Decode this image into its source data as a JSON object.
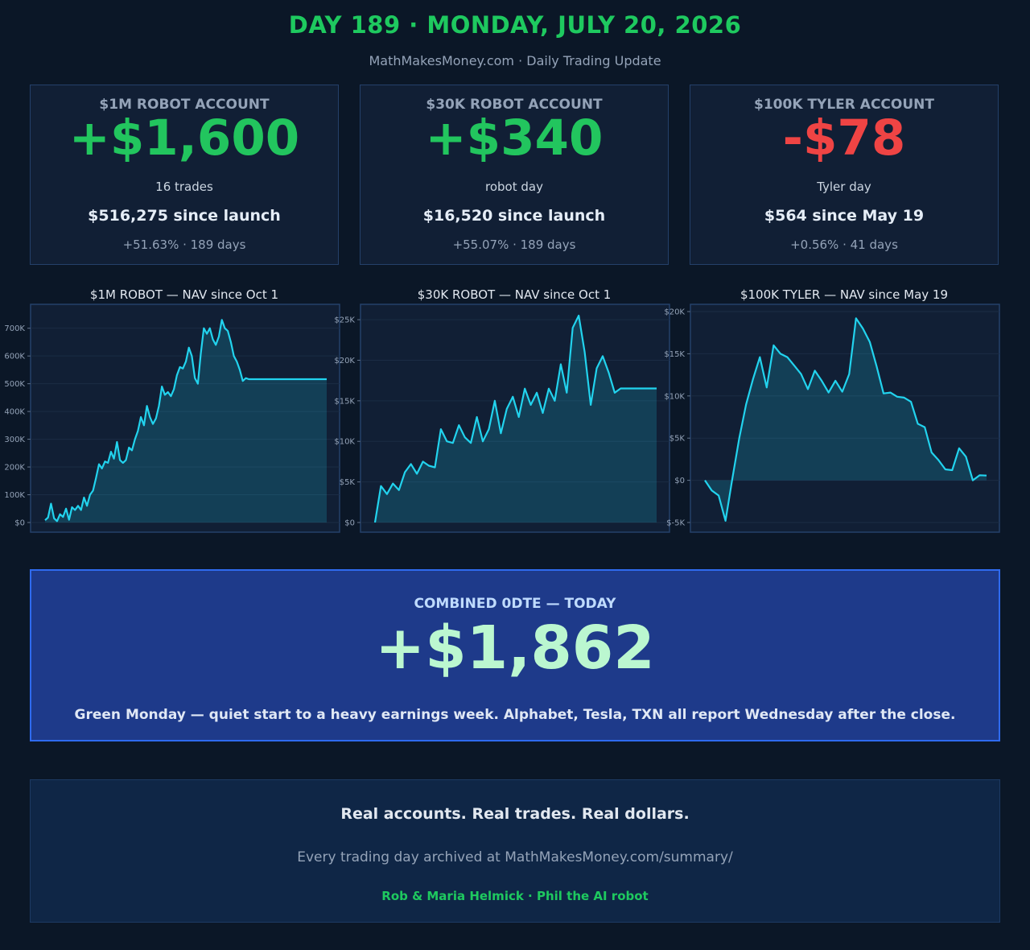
{
  "header": {
    "title": "DAY 189 · MONDAY, JULY 20, 2026",
    "subtitle": "MathMakesMoney.com  ·  Daily Trading Update"
  },
  "cards": [
    {
      "account": "$1M ROBOT ACCOUNT",
      "pnl": "+$1,600",
      "note": "16 trades",
      "since": "$516,275 since launch",
      "pct": "+51.63% · 189 days",
      "color": "#22c55e"
    },
    {
      "account": "$30K ROBOT ACCOUNT",
      "pnl": "+$340",
      "note": "robot day",
      "since": "$16,520 since launch",
      "pct": "+55.07% · 189 days",
      "color": "#22c55e"
    },
    {
      "account": "$100K TYLER ACCOUNT",
      "pnl": "-$78",
      "note": "Tyler day",
      "since": "$564 since May 19",
      "pct": "+0.56% · 41 days",
      "color": "#ef4444"
    }
  ],
  "chart_data": [
    {
      "type": "area",
      "title": "$1M ROBOT — NAV since Oct 1",
      "ylim": [
        0,
        760000
      ],
      "yticks": [
        0,
        100000,
        200000,
        300000,
        400000,
        500000,
        600000,
        700000
      ],
      "ytick_labels": [
        "$0",
        "100K",
        "200K",
        "300K",
        "400K",
        "500K",
        "600K",
        "700K"
      ],
      "color": "#22d3ee",
      "x": [
        0,
        2,
        4,
        6,
        8,
        10,
        12,
        14,
        16,
        18,
        20,
        22,
        24,
        26,
        28,
        30,
        32,
        34,
        36,
        38,
        40,
        42,
        44,
        46,
        48,
        50,
        52,
        54,
        56,
        58,
        60,
        62,
        64,
        66,
        68,
        70,
        72,
        74,
        76,
        78,
        80,
        82,
        84,
        86,
        88,
        90,
        92,
        94,
        96,
        98,
        100,
        102,
        104,
        106,
        108,
        110,
        112,
        114,
        116,
        118,
        120,
        122,
        124,
        126,
        128,
        130,
        132,
        134,
        136,
        138,
        140,
        142,
        144,
        146,
        148,
        150,
        152,
        154,
        156,
        158,
        160,
        162,
        164,
        166,
        168,
        170,
        172,
        174,
        176,
        178,
        180,
        182,
        184,
        186,
        188
      ],
      "values": [
        8000,
        18000,
        68000,
        15000,
        5000,
        30000,
        20000,
        50000,
        10000,
        55000,
        45000,
        60000,
        45000,
        90000,
        60000,
        100000,
        115000,
        160000,
        210000,
        195000,
        220000,
        215000,
        255000,
        230000,
        290000,
        225000,
        215000,
        225000,
        270000,
        260000,
        300000,
        330000,
        380000,
        350000,
        420000,
        380000,
        355000,
        375000,
        420000,
        490000,
        460000,
        470000,
        455000,
        480000,
        530000,
        560000,
        555000,
        580000,
        630000,
        600000,
        520000,
        500000,
        610000,
        700000,
        680000,
        700000,
        660000,
        640000,
        670000,
        730000,
        700000,
        690000,
        650000,
        600000,
        580000,
        550000,
        510000,
        520000,
        516275,
        516275,
        516275,
        516275,
        516275,
        516275,
        516275,
        516275,
        516275,
        516275,
        516275,
        516275,
        516275,
        516275,
        516275,
        516275,
        516275,
        516275,
        516275,
        516275,
        516275,
        516275,
        516275,
        516275,
        516275,
        516275,
        516275
      ]
    },
    {
      "type": "area",
      "title": "$30K ROBOT — NAV since Oct 1",
      "ylim": [
        0,
        26000
      ],
      "yticks": [
        0,
        5000,
        10000,
        15000,
        20000,
        25000
      ],
      "ytick_labels": [
        "$0",
        "$5K",
        "$10K",
        "$15K",
        "$20K",
        "$25K"
      ],
      "color": "#22d3ee",
      "x": [
        0,
        4,
        8,
        12,
        16,
        20,
        24,
        28,
        32,
        36,
        40,
        44,
        48,
        52,
        56,
        60,
        64,
        68,
        72,
        76,
        80,
        84,
        88,
        92,
        96,
        100,
        104,
        108,
        112,
        116,
        120,
        124,
        128,
        132,
        136,
        140,
        144,
        148,
        152,
        156,
        160,
        164,
        168,
        172,
        176,
        180,
        184,
        188
      ],
      "values": [
        0,
        4500,
        3500,
        4800,
        4000,
        6200,
        7200,
        6000,
        7500,
        7000,
        6800,
        11500,
        10000,
        9800,
        12000,
        10500,
        9800,
        13000,
        10000,
        11500,
        15000,
        11000,
        14000,
        15500,
        13000,
        16500,
        14500,
        16000,
        13500,
        16500,
        15000,
        19500,
        16000,
        24000,
        25500,
        21000,
        14500,
        19000,
        20500,
        18500,
        16000,
        16520,
        16520,
        16520,
        16520,
        16520,
        16520,
        16520
      ]
    },
    {
      "type": "area",
      "title": "$100K TYLER — NAV since May 19",
      "ylim": [
        -5000,
        20000
      ],
      "yticks": [
        -5000,
        0,
        5000,
        10000,
        15000,
        20000
      ],
      "ytick_labels": [
        "$-5K",
        "$0",
        "$5K",
        "$10K",
        "$15K",
        "$20K"
      ],
      "color": "#22d3ee",
      "x": [
        0,
        1,
        2,
        3,
        4,
        5,
        6,
        7,
        8,
        9,
        10,
        11,
        12,
        13,
        14,
        15,
        16,
        17,
        18,
        19,
        20,
        21,
        22,
        23,
        24,
        25,
        26,
        27,
        28,
        29,
        30,
        31,
        32,
        33,
        34,
        35,
        36,
        37,
        38,
        39,
        40,
        41
      ],
      "values": [
        0,
        -1200,
        -1800,
        -4800,
        200,
        5000,
        9000,
        12000,
        14600,
        11000,
        16000,
        15000,
        14600,
        13600,
        12600,
        10800,
        13000,
        11800,
        10400,
        11800,
        10500,
        12600,
        19200,
        18000,
        16400,
        13500,
        10300,
        10400,
        9900,
        9800,
        9300,
        6700,
        6300,
        3300,
        2400,
        1300,
        1200,
        3800,
        2800,
        0,
        600,
        564
      ]
    }
  ],
  "combined": {
    "label": "COMBINED 0DTE — TODAY",
    "value": "+$1,862",
    "comment": "Green Monday — quiet start to a heavy earnings week. Alphabet, Tesla, TXN all report Wednesday after the close."
  },
  "footer": {
    "tagline": "Real accounts. Real trades. Real dollars.",
    "archive": "Every trading day archived at MathMakesMoney.com/summary/",
    "credits": "Rob & Maria Helmick  ·  Phil the AI robot"
  }
}
